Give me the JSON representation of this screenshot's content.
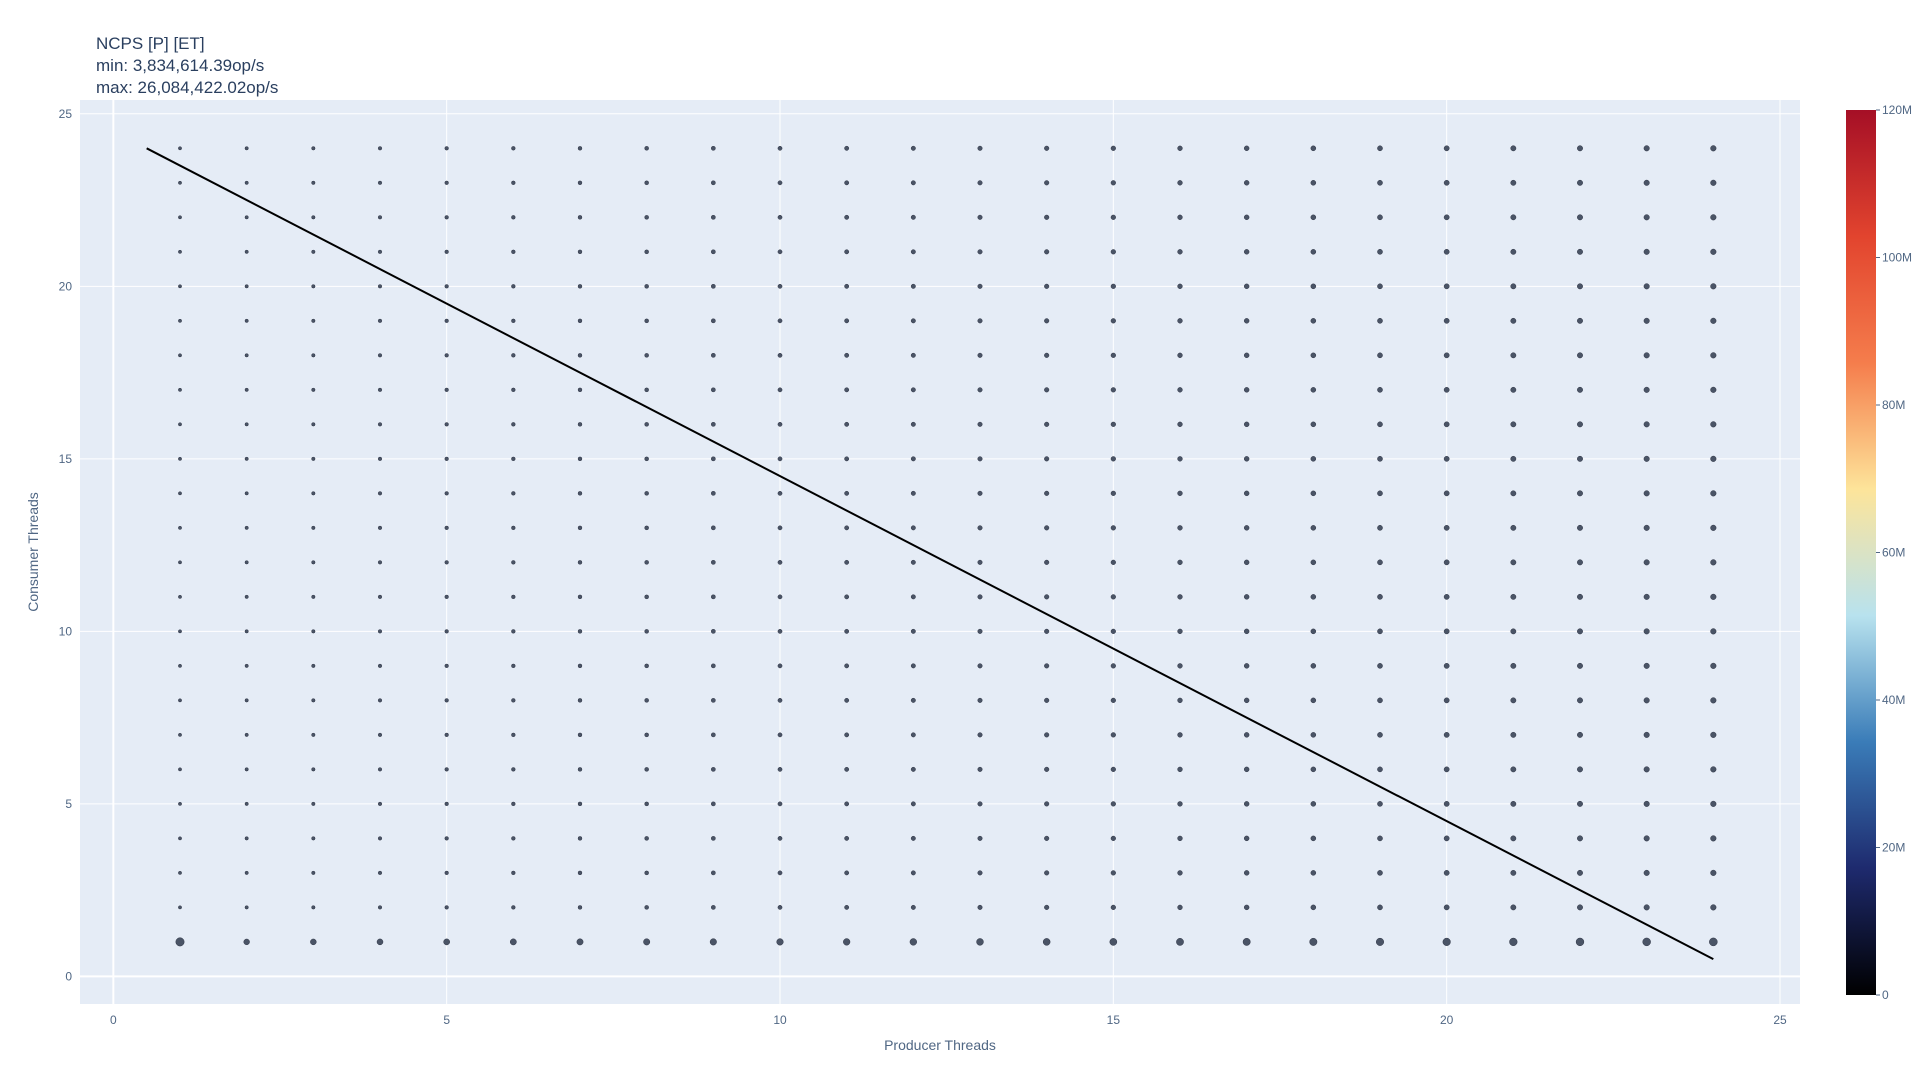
{
  "chart_data": {
    "type": "scatter",
    "title": "NCPS [P] [ET]",
    "subtitle_lines": [
      "min: 3,834,614.39op/s",
      "max: 26,084,422.02op/s"
    ],
    "xlabel": "Producer Threads",
    "ylabel": "Consumer Threads",
    "xlim": [
      -0.5,
      25.3
    ],
    "ylim": [
      -0.8,
      25.4
    ],
    "x_ticks": [
      0,
      5,
      10,
      15,
      20,
      25
    ],
    "y_ticks": [
      0,
      5,
      10,
      15,
      20,
      25
    ],
    "grid": true,
    "background_color": "#e5ecf6",
    "marker_color": "#4a5466",
    "grid_points": {
      "x": [
        1,
        2,
        3,
        4,
        5,
        6,
        7,
        8,
        9,
        10,
        11,
        12,
        13,
        14,
        15,
        16,
        17,
        18,
        19,
        20,
        21,
        22,
        23,
        24
      ],
      "y": [
        1,
        2,
        3,
        4,
        5,
        6,
        7,
        8,
        9,
        10,
        11,
        12,
        13,
        14,
        15,
        16,
        17,
        18,
        19,
        20,
        21,
        22,
        23,
        24
      ]
    },
    "line_series": {
      "color": "#000000",
      "x": [
        0.5,
        24
      ],
      "y": [
        24,
        0.5
      ]
    },
    "colorbar": {
      "ticks": [
        "0",
        "20M",
        "40M",
        "60M",
        "80M",
        "100M",
        "120M"
      ],
      "values": [
        0,
        20000000,
        40000000,
        60000000,
        80000000,
        100000000,
        120000000
      ],
      "range": [
        0,
        120000000
      ],
      "colors": [
        "#000000",
        "#1e2a6e",
        "#3a7cb8",
        "#b8e2ee",
        "#fde49a",
        "#f57d4c",
        "#e2442e",
        "#a50f26"
      ]
    }
  }
}
